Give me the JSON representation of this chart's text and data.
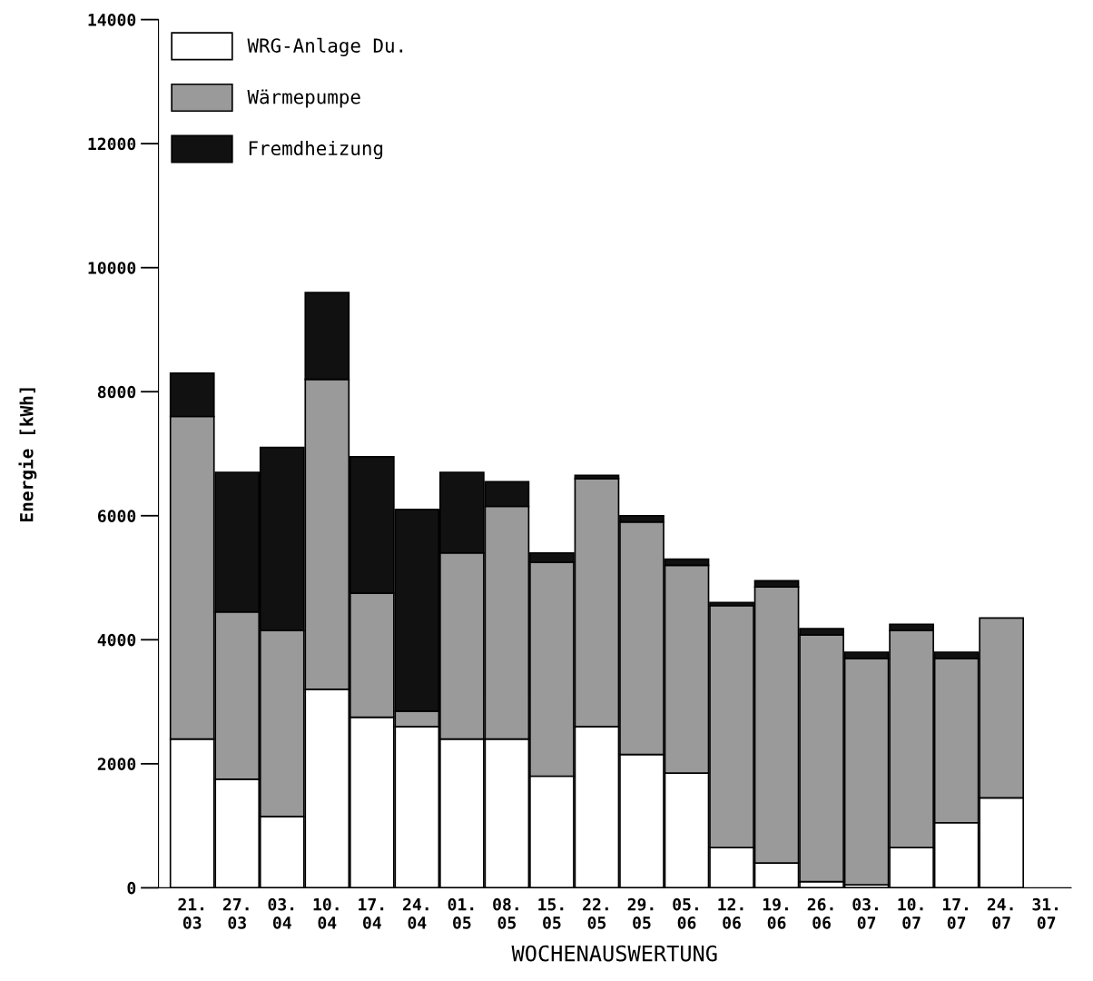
{
  "chart_data": {
    "type": "bar",
    "stacked": true,
    "xlabel": "WOCHENAUSWERTUNG",
    "ylabel": "Energie [kWh]",
    "categories": [
      "21.\n03",
      "27.\n03",
      "03.\n04",
      "10.\n04",
      "17.\n04",
      "24.\n04",
      "01.\n05",
      "08.\n05",
      "15.\n05",
      "22.\n05",
      "29.\n05",
      "05.\n06",
      "12.\n06",
      "19.\n06",
      "26.\n06",
      "03.\n07",
      "10.\n07",
      "17.\n07",
      "24.\n07",
      "31.\n07"
    ],
    "ylim": [
      0,
      14000
    ],
    "yticks": [
      0,
      2000,
      4000,
      6000,
      8000,
      10000,
      12000,
      14000
    ],
    "legend": "top left",
    "grid": false,
    "series": [
      {
        "name": "WRG-Anlage Du.",
        "color": "#ffffff",
        "values": [
          2400,
          1750,
          1150,
          3200,
          2750,
          2600,
          2400,
          2400,
          1800,
          2600,
          2150,
          1850,
          650,
          400,
          100,
          50,
          650,
          1050,
          1450,
          null
        ]
      },
      {
        "name": "Wärmepumpe",
        "color": "#9a9a9a",
        "values": [
          5200,
          2700,
          3000,
          5000,
          2000,
          250,
          3000,
          3750,
          3450,
          4000,
          3750,
          3350,
          3900,
          4450,
          3980,
          3650,
          3500,
          2650,
          2900,
          null
        ]
      },
      {
        "name": "Fremdheizung",
        "color": "#111111",
        "values": [
          700,
          2250,
          2950,
          1400,
          2200,
          3250,
          1300,
          400,
          150,
          50,
          100,
          100,
          50,
          100,
          100,
          100,
          100,
          100,
          null,
          null
        ]
      }
    ]
  }
}
